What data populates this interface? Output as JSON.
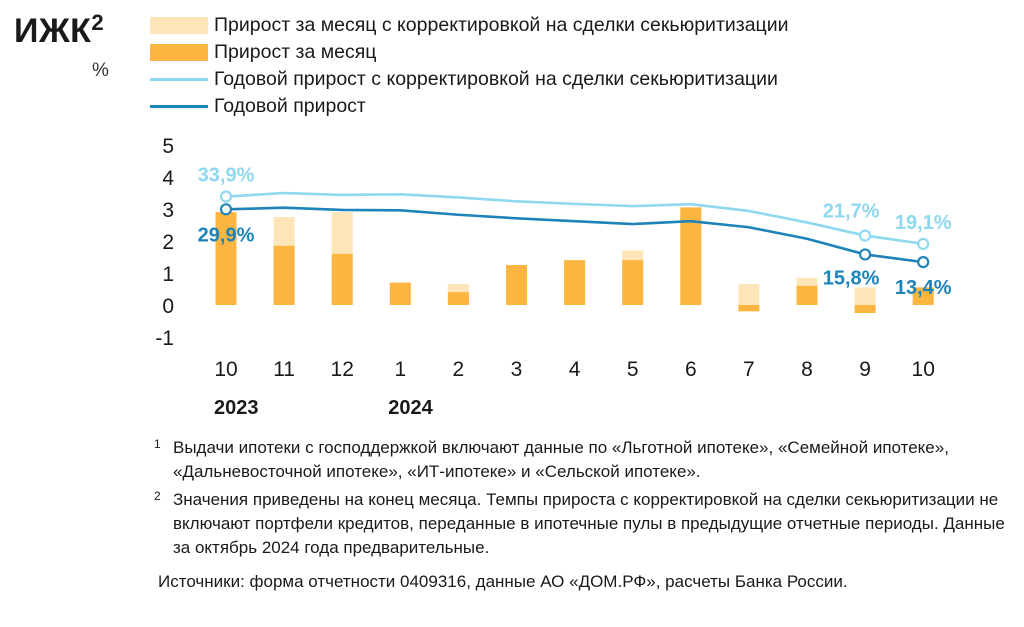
{
  "title": "ИЖК",
  "title_sup": "2",
  "unit": "%",
  "colors": {
    "monthly_adjusted": "#fde5b8",
    "monthly": "#fbb540",
    "annual_adjusted": "#8ed8f0",
    "annual": "#1e83b8"
  },
  "chart_data": {
    "type": "bar",
    "categories": [
      "10",
      "11",
      "12",
      "1",
      "2",
      "3",
      "4",
      "5",
      "6",
      "7",
      "8",
      "9",
      "10"
    ],
    "years": [
      {
        "label": "2023",
        "category_index": 0
      },
      {
        "label": "2024",
        "category_index": 3
      }
    ],
    "ylim": [
      -1,
      5
    ],
    "yticks": [
      "5",
      "4",
      "3",
      "2",
      "1",
      "0",
      "-1"
    ],
    "series": [
      {
        "name": "Прирост за месяц с корректировкой на сделки секьюритизации",
        "type": "bar",
        "values": [
          2.9,
          2.75,
          2.9,
          0.7,
          0.65,
          1.25,
          1.4,
          1.7,
          3.05,
          0.65,
          0.85,
          0.55,
          0.55
        ]
      },
      {
        "name": "Прирост за месяц",
        "type": "bar",
        "values": [
          2.9,
          1.85,
          1.6,
          0.7,
          0.4,
          1.25,
          1.4,
          1.4,
          3.05,
          -0.2,
          0.6,
          -0.25,
          0.55
        ]
      },
      {
        "name": "Годовой прирост с корректировкой на сделки секьюритизации",
        "type": "line",
        "values": [
          3.39,
          3.5,
          3.44,
          3.46,
          3.36,
          3.24,
          3.16,
          3.09,
          3.15,
          2.94,
          2.58,
          2.17,
          1.91
        ]
      },
      {
        "name": "Годовой прирост",
        "type": "line",
        "values": [
          2.99,
          3.04,
          2.97,
          2.96,
          2.82,
          2.71,
          2.62,
          2.53,
          2.62,
          2.43,
          2.07,
          1.58,
          1.34
        ]
      }
    ],
    "data_labels": [
      {
        "text": "33,9%",
        "series": 2,
        "index": 0,
        "place": "above"
      },
      {
        "text": "29,9%",
        "series": 3,
        "index": 0,
        "place": "below"
      },
      {
        "text": "21,7%",
        "series": 2,
        "index": 11,
        "place": "above-left"
      },
      {
        "text": "15,8%",
        "series": 3,
        "index": 11,
        "place": "below-left"
      },
      {
        "text": "19,1%",
        "series": 2,
        "index": 12,
        "place": "above"
      },
      {
        "text": "13,4%",
        "series": 3,
        "index": 12,
        "place": "below"
      }
    ]
  },
  "notes": [
    {
      "sup": "1",
      "text": "Выдачи ипотеки с господдержкой включают данные по «Льготной ипотеке», «Семейной ипотеке», «Дальневосточной ипотеке», «ИТ-ипотеке» и «Сельской ипотеке»."
    },
    {
      "sup": "2",
      "text": "Значения приведены на конец месяца. Темпы прироста с корректировкой на сделки секьюритизации не включают портфели кредитов, переданные в ипотечные пулы в предыдущие отчетные периоды. Данные за октябрь 2024 года предварительные."
    }
  ],
  "sources": "Источники: форма отчетности 0409316, данные АО «ДОМ.РФ», расчеты Банка России."
}
